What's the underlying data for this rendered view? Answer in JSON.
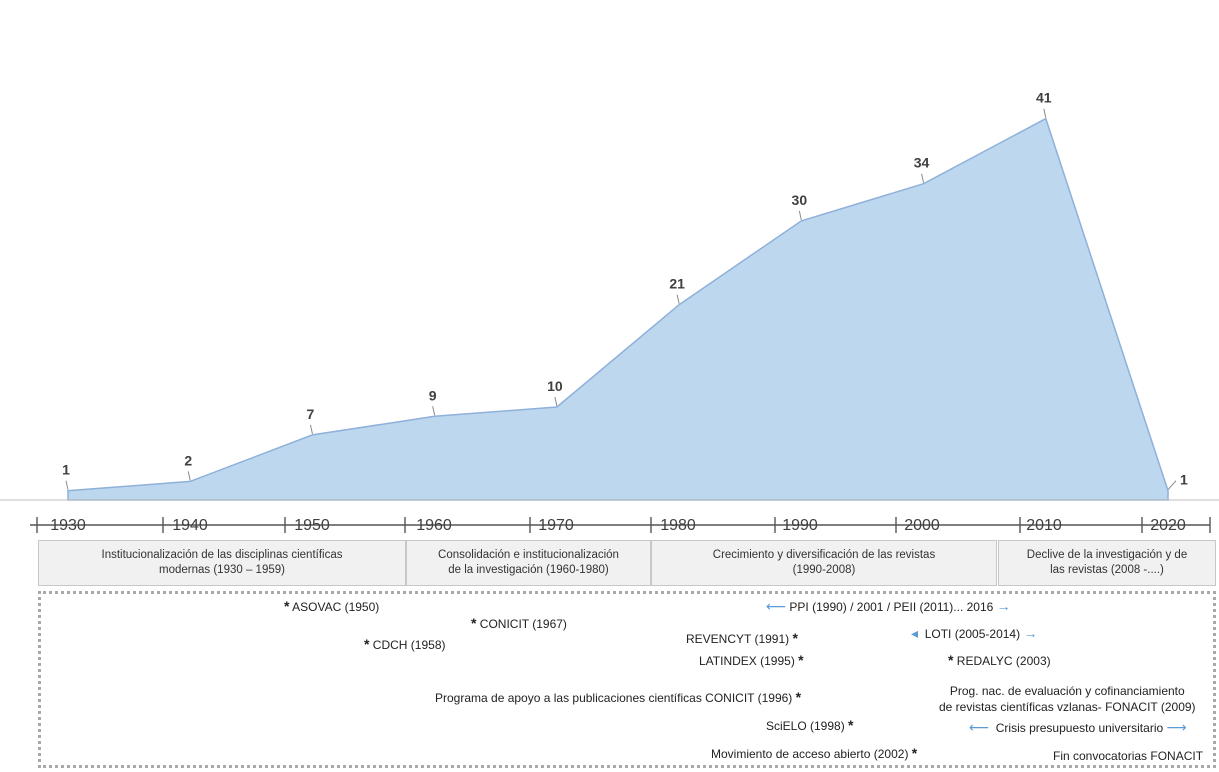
{
  "chart_data": {
    "type": "area",
    "x": [
      1930,
      1940,
      1950,
      1960,
      1970,
      1980,
      1990,
      2000,
      2010,
      2020
    ],
    "values": [
      1,
      2,
      7,
      9,
      10,
      21,
      30,
      34,
      41,
      1
    ],
    "value_labels": [
      "1",
      "2",
      "7",
      "9",
      "10",
      "21",
      "30",
      "34",
      "41",
      "1"
    ],
    "xticks": [
      "1930",
      "1940",
      "1950",
      "1960",
      "1970",
      "1980",
      "1990",
      "2000",
      "2010",
      "2020"
    ],
    "ylim": [
      0,
      43
    ],
    "title": "",
    "xlabel": "",
    "ylabel": "",
    "grid": false,
    "area_fill": "#bdd7ee",
    "area_stroke": "#8eb0da"
  },
  "periods": [
    {
      "label_lines": [
        "Institucionalización de las disciplinas científicas",
        "modernas (1930 – 1959)"
      ]
    },
    {
      "label_lines": [
        "Consolidación e institucionalización",
        "de la investigación (1960-1980)"
      ]
    },
    {
      "label_lines": [
        "Crecimiento y diversificación de las revistas",
        "(1990-2008)"
      ]
    },
    {
      "label_lines": [
        "Declive de la investigación y de",
        "las revistas (2008 -....)"
      ]
    }
  ],
  "events": {
    "asovac": "ASOVAC (1950)",
    "cdch": "CDCH  (1958)",
    "conicit": "CONICIT (1967)",
    "ppi": "PPI (1990)  /    2001  /    PEII (2011)... 2016",
    "revencyt": "REVENCYT (1991)",
    "loti": "LOTI (2005-2014)",
    "latindex": "LATINDEX (1995)",
    "redalyc": "REDALYC (2003)",
    "programa": "Programa de apoyo a las publicaciones científicas CONICIT (1996)",
    "prog_nac_1": "Prog. nac. de evaluación y cofinanciamiento",
    "prog_nac_2": "de revistas científicas vzlanas- FONACIT (2009)",
    "scielo": "SciELO (1998)",
    "crisis": "Crisis presupuesto universitario",
    "acceso": "Movimiento de acceso abierto (2002)",
    "fin": "Fin convocatorias FONACIT",
    "star": "*",
    "arrow_left": "⟵",
    "arrow_right": "⟶",
    "arrow_small_left": "◂",
    "arrow_small_right": "→"
  }
}
